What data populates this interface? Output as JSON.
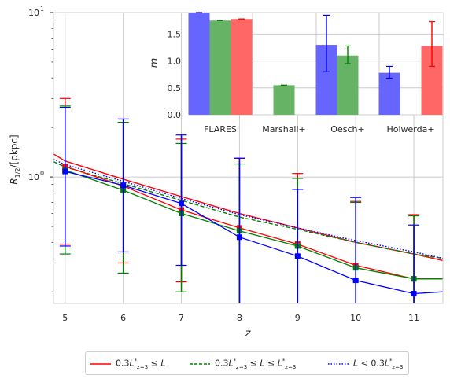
{
  "chart_data": [
    {
      "type": "line",
      "title": "",
      "xlabel": "z",
      "ylabel": "R_{1/2}/[pkpc]",
      "xlim": [
        4.8,
        11.5
      ],
      "ylim": [
        0.17,
        10
      ],
      "yscale": "log",
      "grid": true,
      "x_ticks": [
        5,
        6,
        7,
        8,
        9,
        10,
        11
      ],
      "y_tick_labels": [
        {
          "value": 1,
          "label": "10",
          "exp": "0"
        },
        {
          "value": 10,
          "label": "10",
          "exp": "1"
        }
      ],
      "colors": {
        "red": "#ff0000",
        "green": "#008000",
        "blue": "#0000ff"
      },
      "models": [
        {
          "legend": "0.3L*_{z=3} ≤ L",
          "color": "#ff0000",
          "dash": "solid",
          "x": [
            4.8,
            5,
            6,
            7,
            8,
            9,
            10,
            11,
            11.5
          ],
          "y": [
            1.38,
            1.25,
            0.97,
            0.76,
            0.6,
            0.49,
            0.4,
            0.34,
            0.31
          ]
        },
        {
          "legend": "0.3L*_{z=3} ≤ L ≤ L*_{z=3}",
          "color": "#008000",
          "dash": "dashed",
          "x": [
            4.8,
            5,
            6,
            7,
            8,
            9,
            10,
            11,
            11.5
          ],
          "y": [
            1.24,
            1.15,
            0.91,
            0.72,
            0.57,
            0.48,
            0.4,
            0.34,
            0.32
          ]
        },
        {
          "legend": "L < 0.3L*_{z=3}",
          "color": "#0000ff",
          "dash": "dotted",
          "x": [
            4.8,
            5,
            6,
            7,
            8,
            9,
            10,
            11,
            11.5
          ],
          "y": [
            1.28,
            1.19,
            0.94,
            0.74,
            0.59,
            0.49,
            0.41,
            0.35,
            0.32
          ]
        }
      ],
      "observations": [
        {
          "color": "#ff0000",
          "x": [
            5,
            6,
            7,
            8,
            9,
            10,
            11,
            11.5
          ],
          "y": [
            1.16,
            0.88,
            0.63,
            0.49,
            0.39,
            0.29,
            0.24,
            0.24
          ],
          "err_low": [
            0.39,
            0.3,
            0.23,
            null,
            null,
            null,
            null,
            null
          ],
          "err_high": [
            3.0,
            2.25,
            1.7,
            1.3,
            1.05,
            0.71,
            0.59,
            null
          ]
        },
        {
          "color": "#008000",
          "x": [
            5,
            6,
            7,
            8,
            9,
            10,
            11,
            11.5
          ],
          "y": [
            1.1,
            0.83,
            0.6,
            0.47,
            0.38,
            0.28,
            0.24,
            0.24
          ],
          "err_low": [
            0.34,
            0.26,
            0.2,
            null,
            null,
            null,
            null,
            null
          ],
          "err_high": [
            2.7,
            2.15,
            1.6,
            1.2,
            0.98,
            0.7,
            0.58,
            null
          ]
        },
        {
          "color": "#0000ff",
          "x": [
            5,
            6,
            7,
            8,
            9,
            10,
            11,
            11.5
          ],
          "y": [
            1.08,
            0.89,
            0.69,
            0.43,
            0.33,
            0.235,
            0.195,
            0.2
          ],
          "err_low": [
            0.38,
            0.35,
            0.29,
            0.17,
            0.17,
            0.17,
            0.17,
            null
          ],
          "err_high": [
            2.65,
            2.25,
            1.8,
            1.3,
            0.84,
            0.75,
            0.51,
            null
          ]
        }
      ]
    },
    {
      "type": "bar",
      "title": "",
      "xlabel": "",
      "ylabel": "m",
      "categories": [
        "FLARES",
        "Marshall+",
        "Oesch+",
        "Holwerda+"
      ],
      "ylim": [
        0,
        1.9
      ],
      "y_ticks": [
        0.0,
        0.5,
        1.0,
        1.5
      ],
      "grid": true,
      "series": [
        {
          "color": "#6666ff",
          "err_color": "#0000ff",
          "values": [
            1.9,
            null,
            1.3,
            0.78
          ],
          "err_low": [
            0.0,
            null,
            0.5,
            0.1
          ],
          "err_high": [
            0.0,
            null,
            0.55,
            0.12
          ]
        },
        {
          "color": "#66b366",
          "err_color": "#008000",
          "values": [
            1.75,
            0.55,
            1.1,
            null
          ],
          "err_low": [
            0.0,
            0.0,
            0.15,
            null
          ],
          "err_high": [
            0.0,
            0.0,
            0.18,
            null
          ]
        },
        {
          "color": "#ff6666",
          "err_color": "#ff0000",
          "values": [
            1.78,
            null,
            null,
            1.28
          ],
          "err_low": [
            0.0,
            null,
            null,
            0.38
          ],
          "err_high": [
            0.0,
            null,
            null,
            0.45
          ]
        }
      ]
    }
  ]
}
